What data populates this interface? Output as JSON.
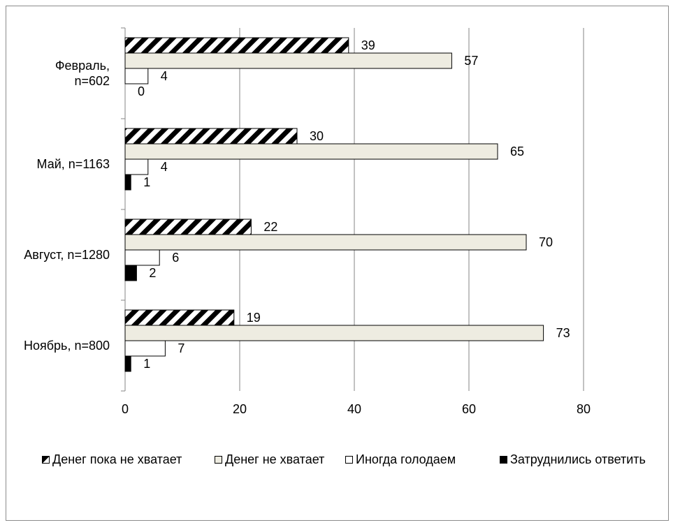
{
  "colors": {
    "hatch_fg": "#000000",
    "hatch_bg": "#ffffff",
    "beige": "#eeece1",
    "white": "#ffffff",
    "black": "#000000",
    "grid": "#868686",
    "axis": "#868686"
  },
  "chart_data": {
    "type": "bar",
    "orientation": "horizontal",
    "categories": [
      "Февраль,\nn=602",
      "Май, n=1163",
      "Август, n=1280",
      "Ноябрь, n=800"
    ],
    "category_lines": [
      [
        "Февраль,",
        "n=602"
      ],
      [
        "Май, n=1163"
      ],
      [
        "Август, n=1280"
      ],
      [
        "Ноябрь, n=800"
      ]
    ],
    "series": [
      {
        "name": "Денег пока не хватает",
        "values": [
          39,
          30,
          22,
          19
        ],
        "fill": "hatch"
      },
      {
        "name": "Денег не хватает",
        "values": [
          57,
          65,
          70,
          73
        ],
        "fill": "beige"
      },
      {
        "name": "Иногда голодаем",
        "values": [
          4,
          4,
          6,
          7
        ],
        "fill": "white"
      },
      {
        "name": "Затруднились ответить",
        "values": [
          0,
          1,
          2,
          1
        ],
        "fill": "black"
      }
    ],
    "xlim": [
      0,
      80
    ],
    "xticks": [
      "0",
      "20",
      "40",
      "60",
      "80"
    ],
    "grid": true,
    "legend_position": "bottom",
    "title": "",
    "xlabel": "",
    "ylabel": ""
  }
}
